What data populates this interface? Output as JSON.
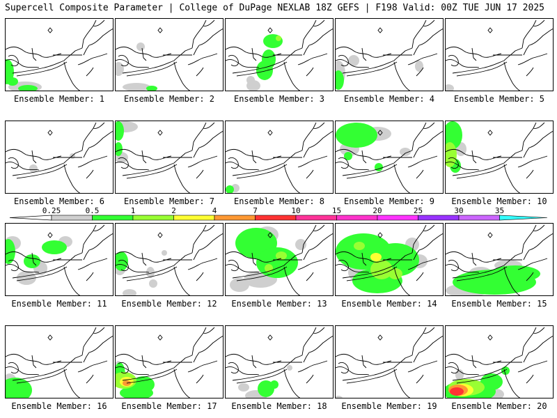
{
  "header": {
    "title": "Supercell Composite Parameter | College of DuPage NEXLAB",
    "valid": "18Z GEFS | F198 Valid: 00Z TUE JUN 17 2025"
  },
  "colorbar": {
    "ticks": [
      "0.25",
      "0.5",
      "1",
      "2",
      "4",
      "7",
      "10",
      "15",
      "20",
      "25",
      "30",
      "35"
    ],
    "colors": [
      "#cfcfcf",
      "#33ff33",
      "#99ff33",
      "#ffff33",
      "#ff9933",
      "#ff3333",
      "#ff3399",
      "#ff33cc",
      "#ff33ff",
      "#9933ff",
      "#cc66ff",
      "#33ffff"
    ]
  },
  "panels": [
    {
      "label": "Ensemble Member: 1"
    },
    {
      "label": "Ensemble Member: 2"
    },
    {
      "label": "Ensemble Member: 3"
    },
    {
      "label": "Ensemble Member: 4"
    },
    {
      "label": "Ensemble Member: 5"
    },
    {
      "label": "Ensemble Member: 6"
    },
    {
      "label": "Ensemble Member: 7"
    },
    {
      "label": "Ensemble Member: 8"
    },
    {
      "label": "Ensemble Member: 9"
    },
    {
      "label": "Ensemble Member: 10"
    },
    {
      "label": "Ensemble Member: 11"
    },
    {
      "label": "Ensemble Member: 12"
    },
    {
      "label": "Ensemble Member: 13"
    },
    {
      "label": "Ensemble Member: 14"
    },
    {
      "label": "Ensemble Member: 15"
    },
    {
      "label": "Ensemble Member: 16"
    },
    {
      "label": "Ensemble Member: 17"
    },
    {
      "label": "Ensemble Member: 18"
    },
    {
      "label": "Ensemble Member: 19"
    },
    {
      "label": "Ensemble Member: 20"
    }
  ]
}
